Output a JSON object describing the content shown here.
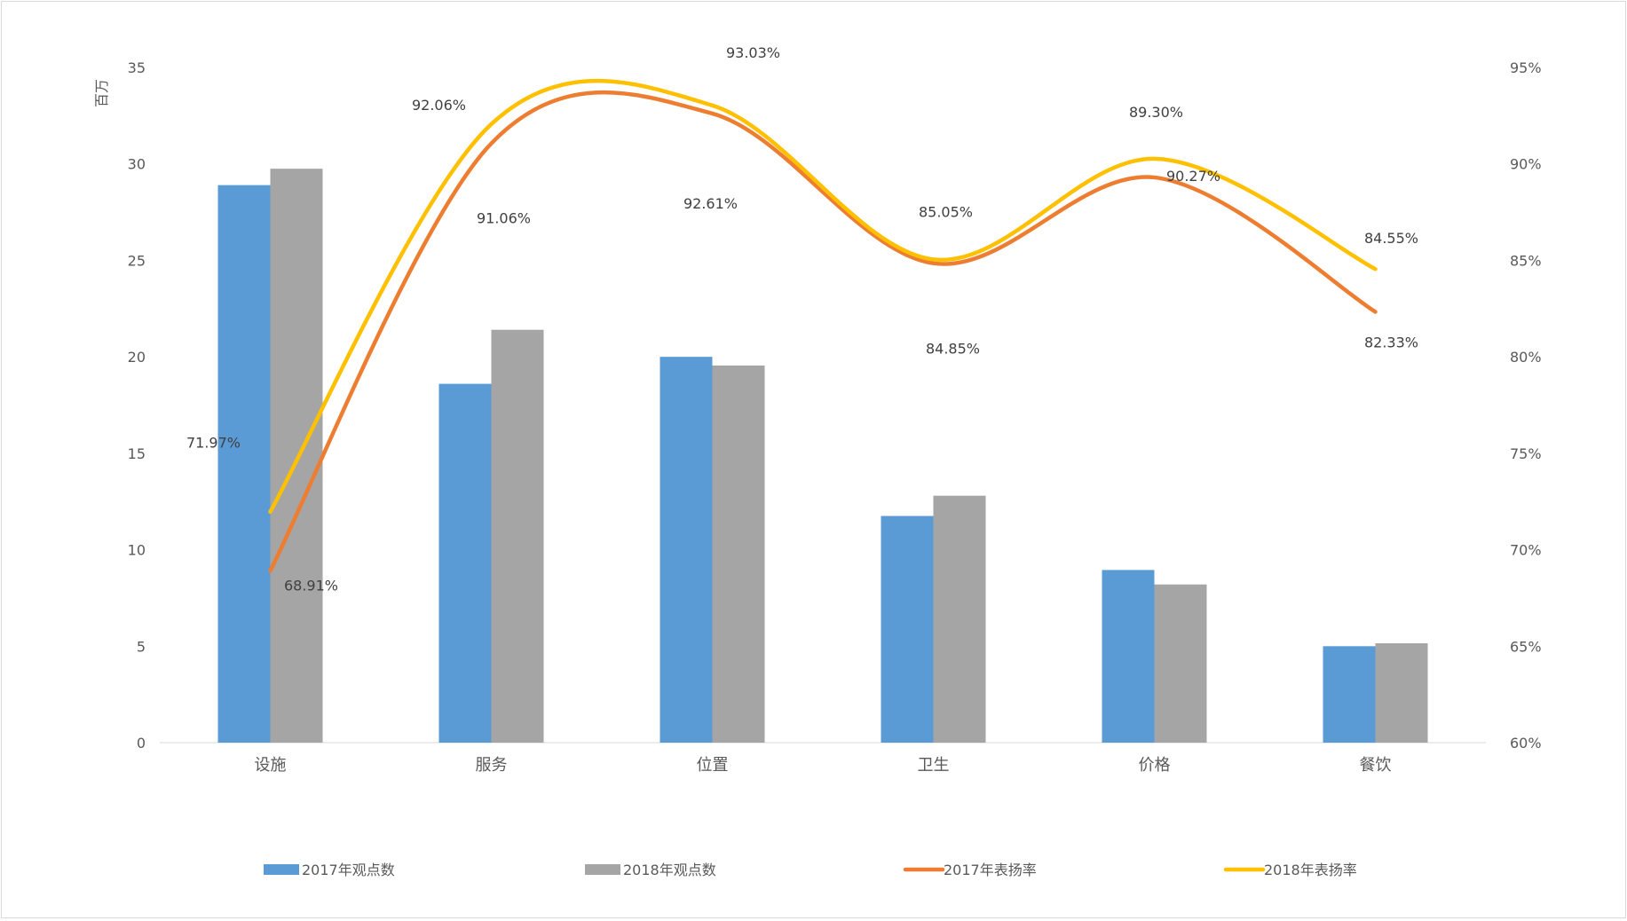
{
  "chart_data": {
    "type": "bar",
    "categories": [
      "设施",
      "服务",
      "位置",
      "卫生",
      "价格",
      "餐饮"
    ],
    "y_left": {
      "label": "百万",
      "ylim": [
        0,
        35
      ],
      "ticks": [
        "0",
        "5",
        "10",
        "15",
        "20",
        "25",
        "30",
        "35"
      ]
    },
    "y_right": {
      "ylim": [
        60,
        95
      ],
      "ticks": [
        "60%",
        "65%",
        "70%",
        "75%",
        "80%",
        "85%",
        "90%",
        "95%"
      ]
    },
    "grid": false,
    "legend_position": "bottom",
    "bar_series": [
      {
        "name": "2017年观点数",
        "color": "#5b9bd5",
        "values": [
          28.9,
          18.6,
          20.0,
          11.75,
          8.95,
          5.0
        ]
      },
      {
        "name": "2018年观点数",
        "color": "#a5a5a5",
        "values": [
          29.75,
          21.4,
          19.55,
          12.8,
          8.2,
          5.15
        ]
      }
    ],
    "line_series": [
      {
        "name": "2017年表扬率",
        "color": "#ed7d31",
        "values": [
          68.91,
          91.06,
          92.61,
          84.85,
          89.3,
          82.33
        ],
        "labels": [
          "68.91%",
          "91.06%",
          "92.61%",
          "84.85%",
          "89.30%",
          "82.33%"
        ]
      },
      {
        "name": "2018年表扬率",
        "color": "#ffc000",
        "values": [
          71.97,
          92.06,
          93.03,
          85.05,
          90.27,
          84.55
        ],
        "labels": [
          "71.97%",
          "92.06%",
          "93.03%",
          "85.05%",
          "90.27%",
          "84.55%"
        ]
      }
    ]
  }
}
